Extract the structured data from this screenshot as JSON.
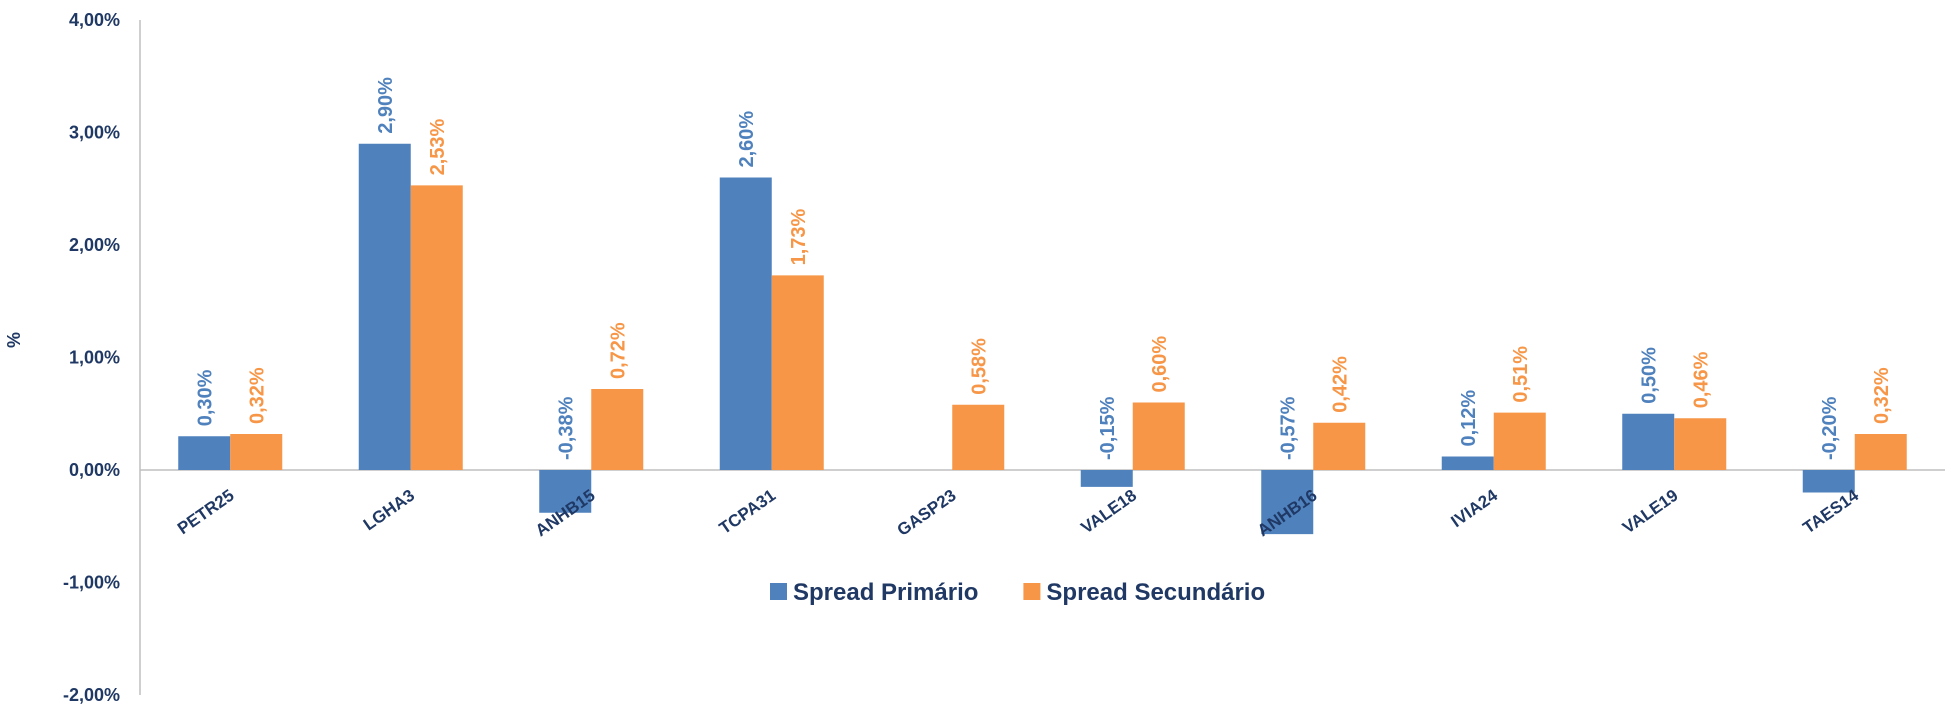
{
  "chart_data": {
    "type": "bar",
    "title": "",
    "xlabel": "",
    "ylabel": "%",
    "ylim": [
      -2,
      4
    ],
    "yticks": [
      4,
      3,
      2,
      1,
      0,
      -1,
      -2
    ],
    "ytick_labels": [
      "4,00%",
      "3,00%",
      "2,00%",
      "1,00%",
      "0,00%",
      "-1,00%",
      "-2,00%"
    ],
    "grid": false,
    "legend_position": "center",
    "categories": [
      "PETR25",
      "LGHA3",
      "ANHB15",
      "TCPA31",
      "GASP23",
      "VALE18",
      "ANHB16",
      "IVIA24",
      "VALE19",
      "TAES14"
    ],
    "series": [
      {
        "name": "Spread Primário",
        "color": "#4f81bd",
        "label_color": "#4f81bd",
        "values": [
          0.3,
          2.9,
          -0.38,
          2.6,
          null,
          -0.15,
          -0.57,
          0.12,
          0.5,
          -0.2
        ],
        "labels": [
          "0,30%",
          "2,90%",
          "-0,38%",
          "2,60%",
          "",
          "-0,15%",
          "-0,57%",
          "0,12%",
          "0,50%",
          "-0,20%"
        ]
      },
      {
        "name": "Spread Secundário",
        "color": "#f79646",
        "label_color": "#f79646",
        "values": [
          0.32,
          2.53,
          0.72,
          1.73,
          0.58,
          0.6,
          0.42,
          0.51,
          0.46,
          0.32
        ],
        "labels": [
          "0,32%",
          "2,53%",
          "0,72%",
          "1,73%",
          "0,58%",
          "0,60%",
          "0,42%",
          "0,51%",
          "0,46%",
          "0,32%"
        ]
      }
    ]
  }
}
